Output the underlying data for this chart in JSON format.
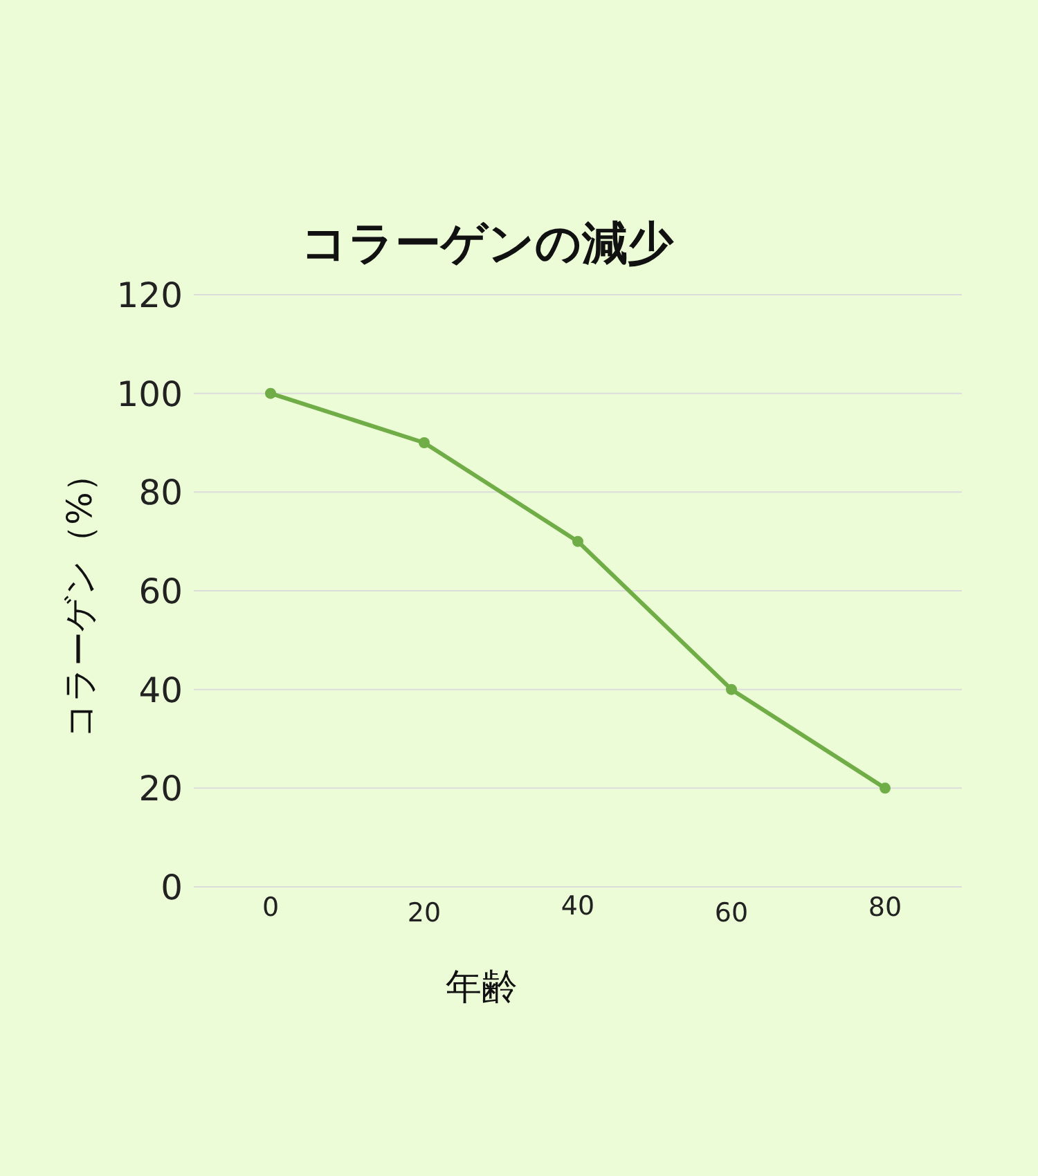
{
  "chart_data": {
    "type": "line",
    "title": "コラーゲンの減少",
    "xlabel": "年齢",
    "ylabel": "コラーゲン（%）",
    "categories": [
      "0",
      "20",
      "40",
      "60",
      "80"
    ],
    "series": [
      {
        "color": "#70ad47",
        "values": [
          100,
          90,
          70,
          40,
          20
        ]
      }
    ],
    "ylim": [
      0,
      120
    ],
    "yticks": [
      0,
      20,
      40,
      60,
      80,
      100,
      120
    ],
    "grid": "y",
    "marker": "circle",
    "line_style": "solid"
  }
}
